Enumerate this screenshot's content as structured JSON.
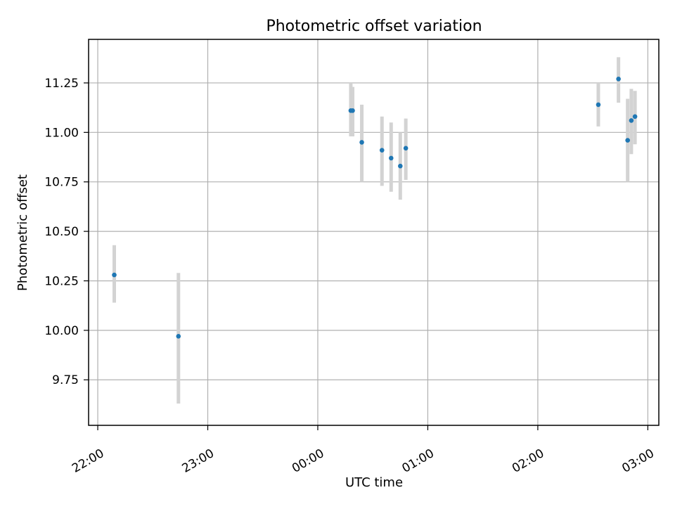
{
  "chart_data": {
    "type": "scatter",
    "title": "Photometric offset variation",
    "xlabel": "UTC time",
    "ylabel": "Photometric offset",
    "x_axis": {
      "kind": "time",
      "range": [
        "21:55",
        "03:06"
      ],
      "ticks": [
        "22:00",
        "23:00",
        "00:00",
        "01:00",
        "02:00",
        "03:00"
      ]
    },
    "y_axis": {
      "range": [
        9.52,
        11.47
      ],
      "ticks": [
        "9.75",
        "10.00",
        "10.25",
        "10.50",
        "10.75",
        "11.00",
        "11.25"
      ]
    },
    "grid": true,
    "series": [
      {
        "marker_color": "#1f77b4",
        "errorbar_color": "#d3d3d3",
        "points": [
          {
            "x": "22:09",
            "y": 10.28,
            "err_low": 10.14,
            "err_high": 10.43
          },
          {
            "x": "22:44",
            "y": 9.97,
            "err_low": 9.63,
            "err_high": 10.29
          },
          {
            "x": "00:18",
            "y": 11.11,
            "err_low": 10.98,
            "err_high": 11.25
          },
          {
            "x": "00:19",
            "y": 11.11,
            "err_low": 10.98,
            "err_high": 11.23
          },
          {
            "x": "00:24",
            "y": 10.95,
            "err_low": 10.75,
            "err_high": 11.14
          },
          {
            "x": "00:35",
            "y": 10.91,
            "err_low": 10.73,
            "err_high": 11.08
          },
          {
            "x": "00:40",
            "y": 10.87,
            "err_low": 10.7,
            "err_high": 11.05
          },
          {
            "x": "00:45",
            "y": 10.83,
            "err_low": 10.66,
            "err_high": 11.0
          },
          {
            "x": "00:48",
            "y": 10.92,
            "err_low": 10.76,
            "err_high": 11.07
          },
          {
            "x": "02:33",
            "y": 11.14,
            "err_low": 11.03,
            "err_high": 11.25
          },
          {
            "x": "02:44",
            "y": 11.27,
            "err_low": 11.15,
            "err_high": 11.38
          },
          {
            "x": "02:49",
            "y": 10.96,
            "err_low": 10.75,
            "err_high": 11.17
          },
          {
            "x": "02:51",
            "y": 11.06,
            "err_low": 10.89,
            "err_high": 11.22
          },
          {
            "x": "02:53",
            "y": 11.08,
            "err_low": 10.94,
            "err_high": 11.21
          }
        ]
      }
    ]
  }
}
